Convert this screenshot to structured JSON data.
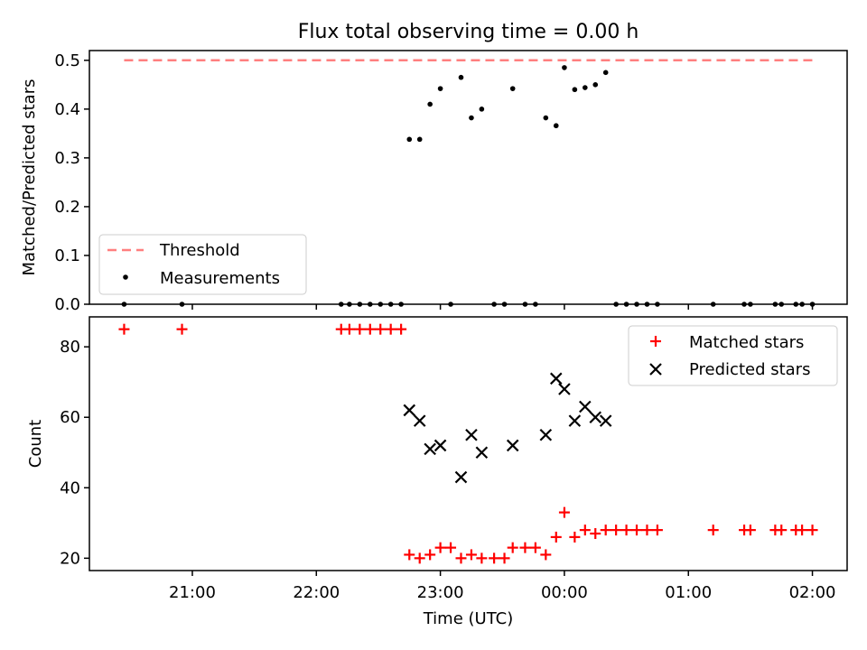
{
  "chart_data": [
    {
      "type": "scatter",
      "title": "Flux total observing time = 0.00 h",
      "xlabel": "",
      "ylabel": "Matched/Predicted stars",
      "ylim": [
        0,
        0.52
      ],
      "yticks": [
        0.0,
        0.1,
        0.2,
        0.3,
        0.4,
        0.5
      ],
      "legend_placement": "lower-left",
      "series": [
        {
          "name": "Threshold",
          "kind": "dashed-line",
          "color": "#ff7f7f",
          "points": [
            [
              "20:27",
              0.5
            ],
            [
              "02:00",
              0.5
            ]
          ]
        },
        {
          "name": "Measurements",
          "kind": "dot",
          "color": "#000000",
          "points": [
            [
              "20:27",
              0.0
            ],
            [
              "20:55",
              0.0
            ],
            [
              "22:12",
              0.0
            ],
            [
              "22:16",
              0.0
            ],
            [
              "22:21",
              0.0
            ],
            [
              "22:26",
              0.0
            ],
            [
              "22:31",
              0.0
            ],
            [
              "22:36",
              0.0
            ],
            [
              "22:41",
              0.0
            ],
            [
              "22:45",
              0.338
            ],
            [
              "22:50",
              0.338
            ],
            [
              "22:55",
              0.41
            ],
            [
              "23:00",
              0.442
            ],
            [
              "23:05",
              0.0
            ],
            [
              "23:10",
              0.465
            ],
            [
              "23:15",
              0.382
            ],
            [
              "23:20",
              0.4
            ],
            [
              "23:26",
              0.0
            ],
            [
              "23:31",
              0.0
            ],
            [
              "23:35",
              0.442
            ],
            [
              "23:41",
              0.0
            ],
            [
              "23:46",
              0.0
            ],
            [
              "23:51",
              0.382
            ],
            [
              "23:56",
              0.366
            ],
            [
              "00:00",
              0.485
            ],
            [
              "00:05",
              0.44
            ],
            [
              "00:10",
              0.444
            ],
            [
              "00:15",
              0.45
            ],
            [
              "00:20",
              0.475
            ],
            [
              "00:25",
              0.0
            ],
            [
              "00:30",
              0.0
            ],
            [
              "00:35",
              0.0
            ],
            [
              "00:40",
              0.0
            ],
            [
              "00:45",
              0.0
            ],
            [
              "01:12",
              0.0
            ],
            [
              "01:27",
              0.0
            ],
            [
              "01:30",
              0.0
            ],
            [
              "01:42",
              0.0
            ],
            [
              "01:45",
              0.0
            ],
            [
              "01:52",
              0.0
            ],
            [
              "01:55",
              0.0
            ],
            [
              "02:00",
              0.0
            ]
          ]
        }
      ]
    },
    {
      "type": "scatter",
      "title": "",
      "xlabel": "Time (UTC)",
      "ylabel": "Count",
      "ylim": [
        16.5,
        88.5
      ],
      "yticks": [
        20,
        40,
        60,
        80
      ],
      "xticks": [
        "21:00",
        "22:00",
        "23:00",
        "00:00",
        "01:00",
        "02:00"
      ],
      "legend_placement": "top-right",
      "series": [
        {
          "name": "Matched stars",
          "marker": "plus",
          "color": "#ff0000",
          "points": [
            [
              "20:27",
              85
            ],
            [
              "20:55",
              85
            ],
            [
              "22:12",
              85
            ],
            [
              "22:16",
              85
            ],
            [
              "22:21",
              85
            ],
            [
              "22:26",
              85
            ],
            [
              "22:31",
              85
            ],
            [
              "22:36",
              85
            ],
            [
              "22:41",
              85
            ],
            [
              "22:45",
              21
            ],
            [
              "22:50",
              20
            ],
            [
              "22:55",
              21
            ],
            [
              "23:00",
              23
            ],
            [
              "23:05",
              23
            ],
            [
              "23:10",
              20
            ],
            [
              "23:15",
              21
            ],
            [
              "23:20",
              20
            ],
            [
              "23:26",
              20
            ],
            [
              "23:31",
              20
            ],
            [
              "23:35",
              23
            ],
            [
              "23:41",
              23
            ],
            [
              "23:46",
              23
            ],
            [
              "23:51",
              21
            ],
            [
              "23:56",
              26
            ],
            [
              "00:00",
              33
            ],
            [
              "00:05",
              26
            ],
            [
              "00:10",
              28
            ],
            [
              "00:15",
              27
            ],
            [
              "00:20",
              28
            ],
            [
              "00:25",
              28
            ],
            [
              "00:30",
              28
            ],
            [
              "00:35",
              28
            ],
            [
              "00:40",
              28
            ],
            [
              "00:45",
              28
            ],
            [
              "01:12",
              28
            ],
            [
              "01:27",
              28
            ],
            [
              "01:30",
              28
            ],
            [
              "01:42",
              28
            ],
            [
              "01:45",
              28
            ],
            [
              "01:52",
              28
            ],
            [
              "01:55",
              28
            ],
            [
              "02:00",
              28
            ]
          ]
        },
        {
          "name": "Predicted stars",
          "marker": "x",
          "color": "#000000",
          "points": [
            [
              "22:45",
              62
            ],
            [
              "22:50",
              59
            ],
            [
              "22:55",
              51
            ],
            [
              "23:00",
              52
            ],
            [
              "23:10",
              43
            ],
            [
              "23:15",
              55
            ],
            [
              "23:20",
              50
            ],
            [
              "23:35",
              52
            ],
            [
              "23:51",
              55
            ],
            [
              "23:56",
              71
            ],
            [
              "00:00",
              68
            ],
            [
              "00:05",
              59
            ],
            [
              "00:10",
              63
            ],
            [
              "00:15",
              60
            ],
            [
              "00:20",
              59
            ]
          ]
        }
      ]
    }
  ]
}
